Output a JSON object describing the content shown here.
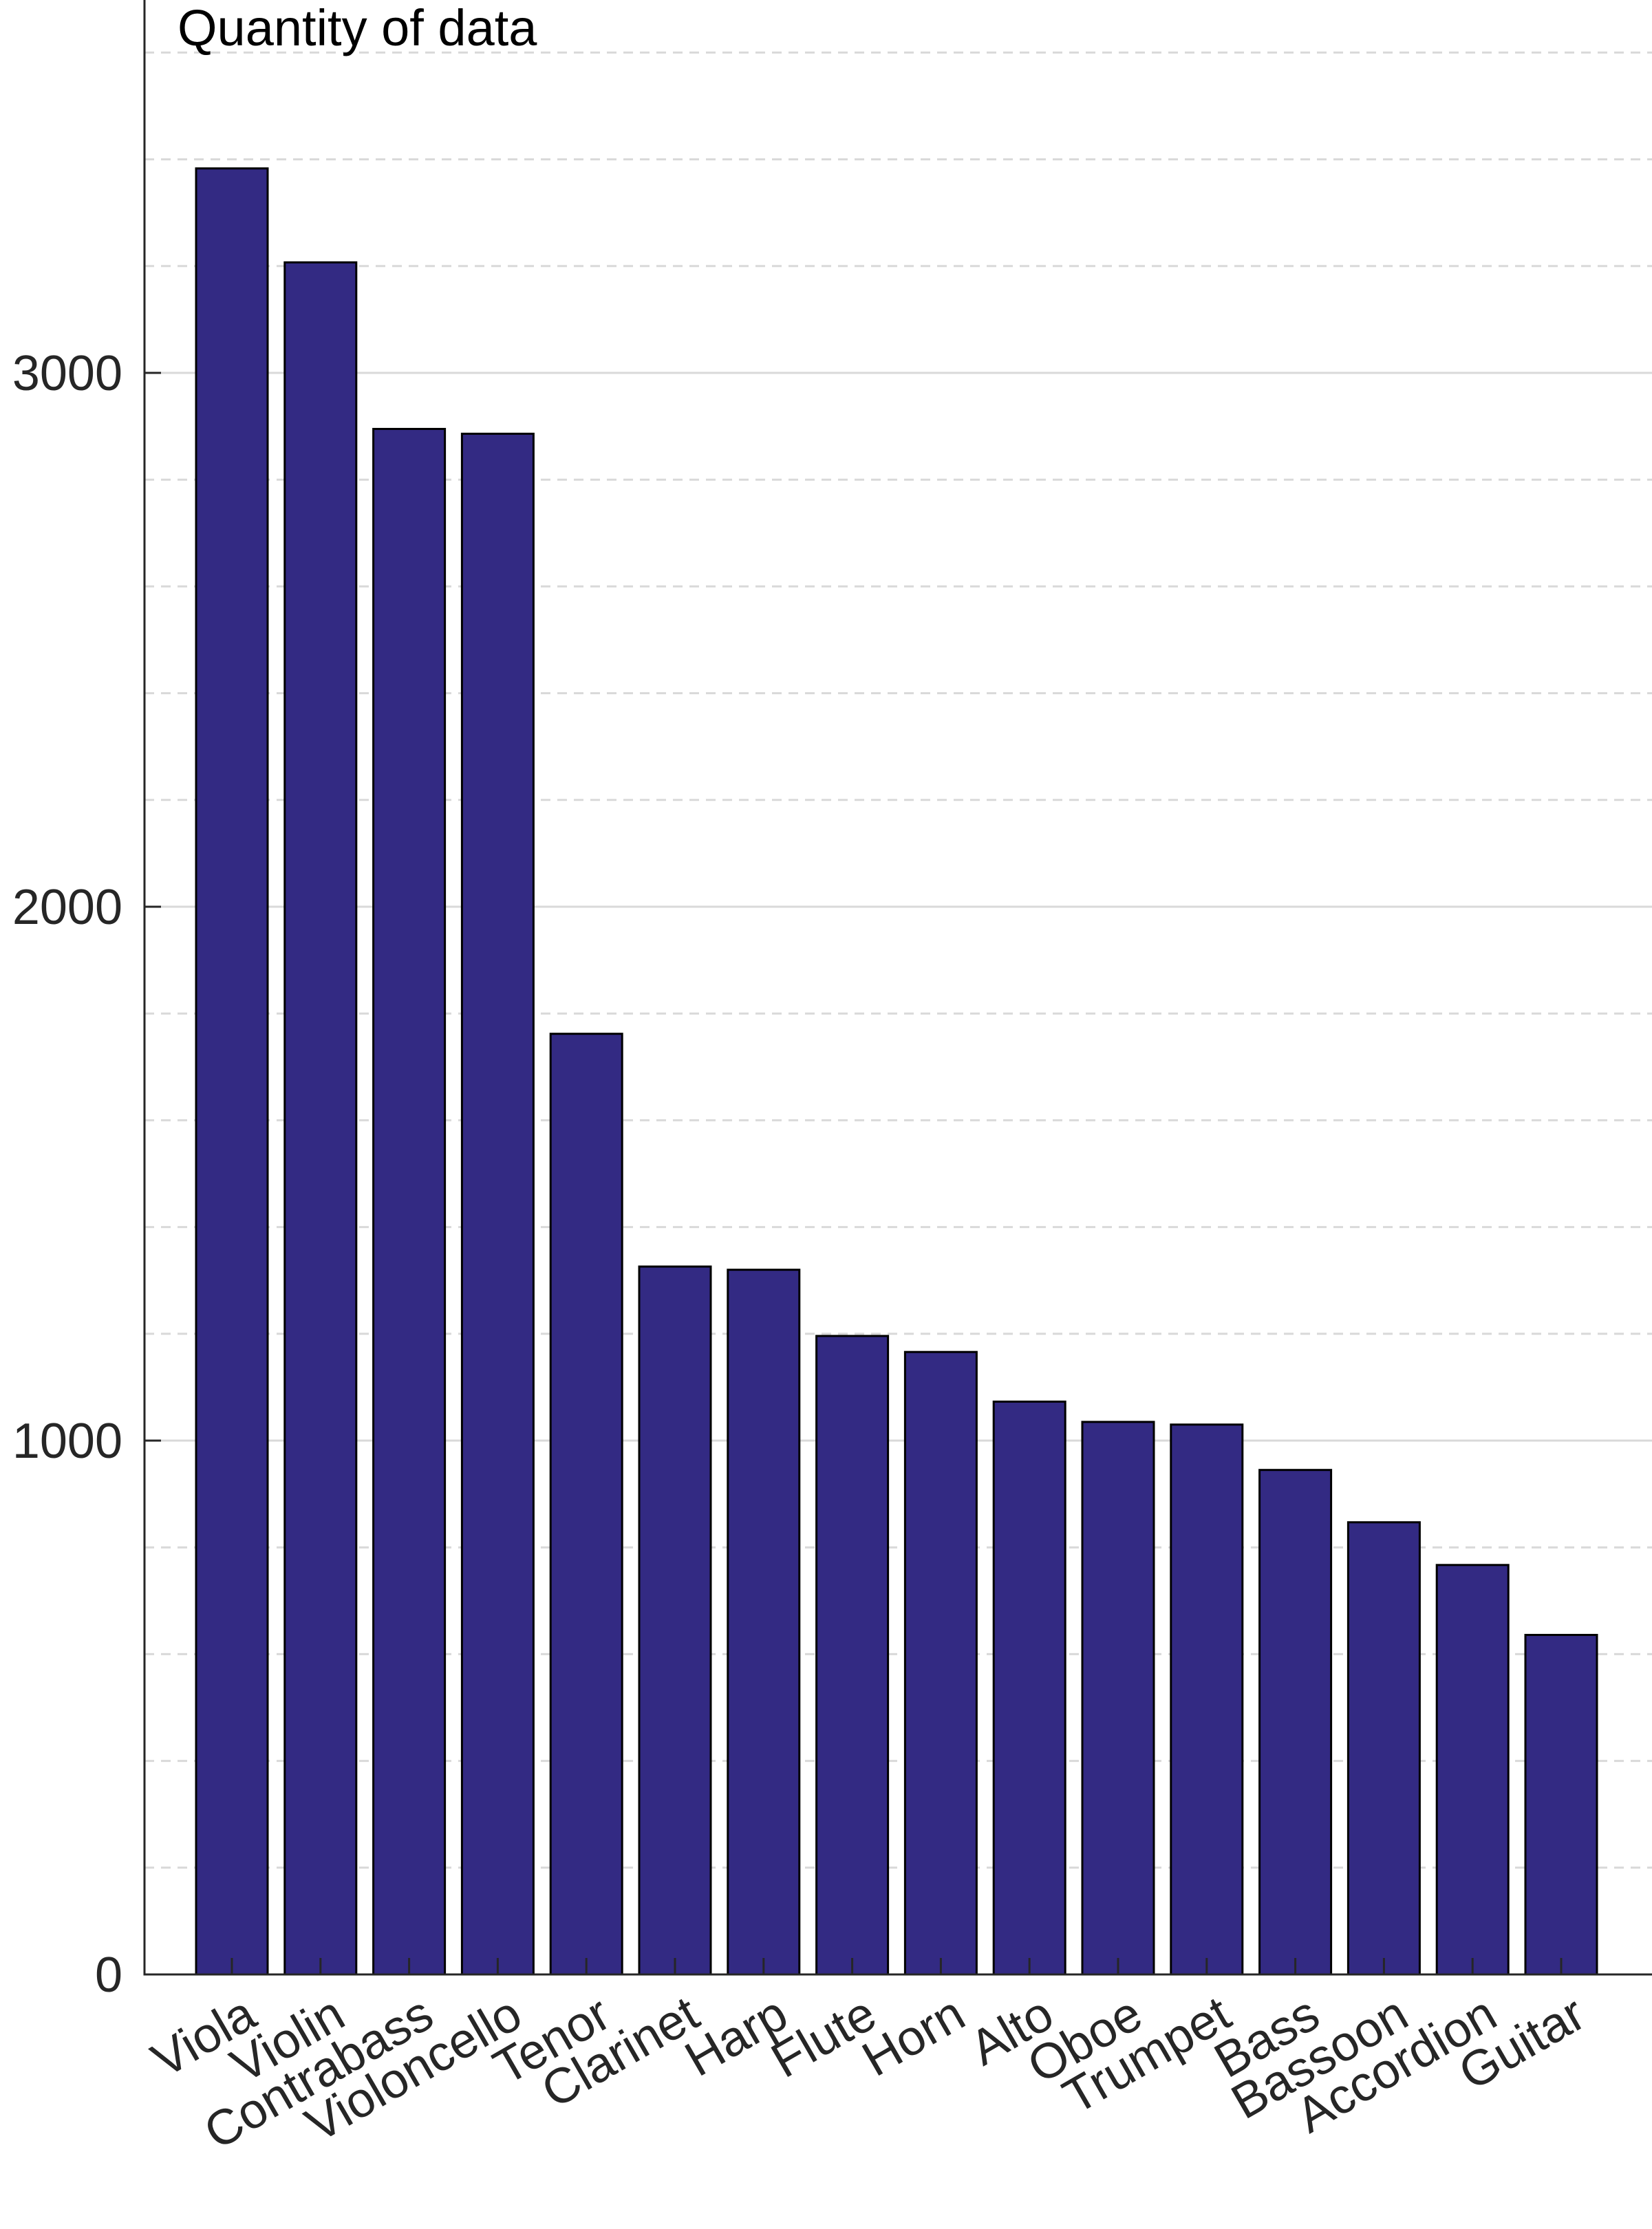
{
  "chart_data": {
    "type": "bar",
    "title": "Quantity of data",
    "xlabel": "",
    "ylabel": "",
    "categories": [
      "Viola",
      "Violin",
      "Contrabass",
      "Violoncello",
      "Tenor",
      "Clarinet",
      "Harp",
      "Flute",
      "Horn",
      "Alto",
      "Oboe",
      "Trumpet",
      "Bass",
      "Bassoon",
      "Accordion",
      "Guitar"
    ],
    "values": [
      3383,
      3207,
      2895,
      2886,
      1762,
      1326,
      1320,
      1196,
      1166,
      1073,
      1035,
      1030,
      945,
      847,
      767,
      636
    ],
    "ylim": [
      0,
      3700
    ],
    "yticks": [
      0,
      1000,
      2000,
      3000
    ],
    "ytick_labels": [
      "0",
      "1000",
      "2000",
      "3000"
    ],
    "minor_grid_step": 200,
    "grid": true,
    "bar_color": "#332a83",
    "bar_edge_color": "#000000",
    "grid_color": "#d9d9d9",
    "axis_color": "#262626"
  }
}
